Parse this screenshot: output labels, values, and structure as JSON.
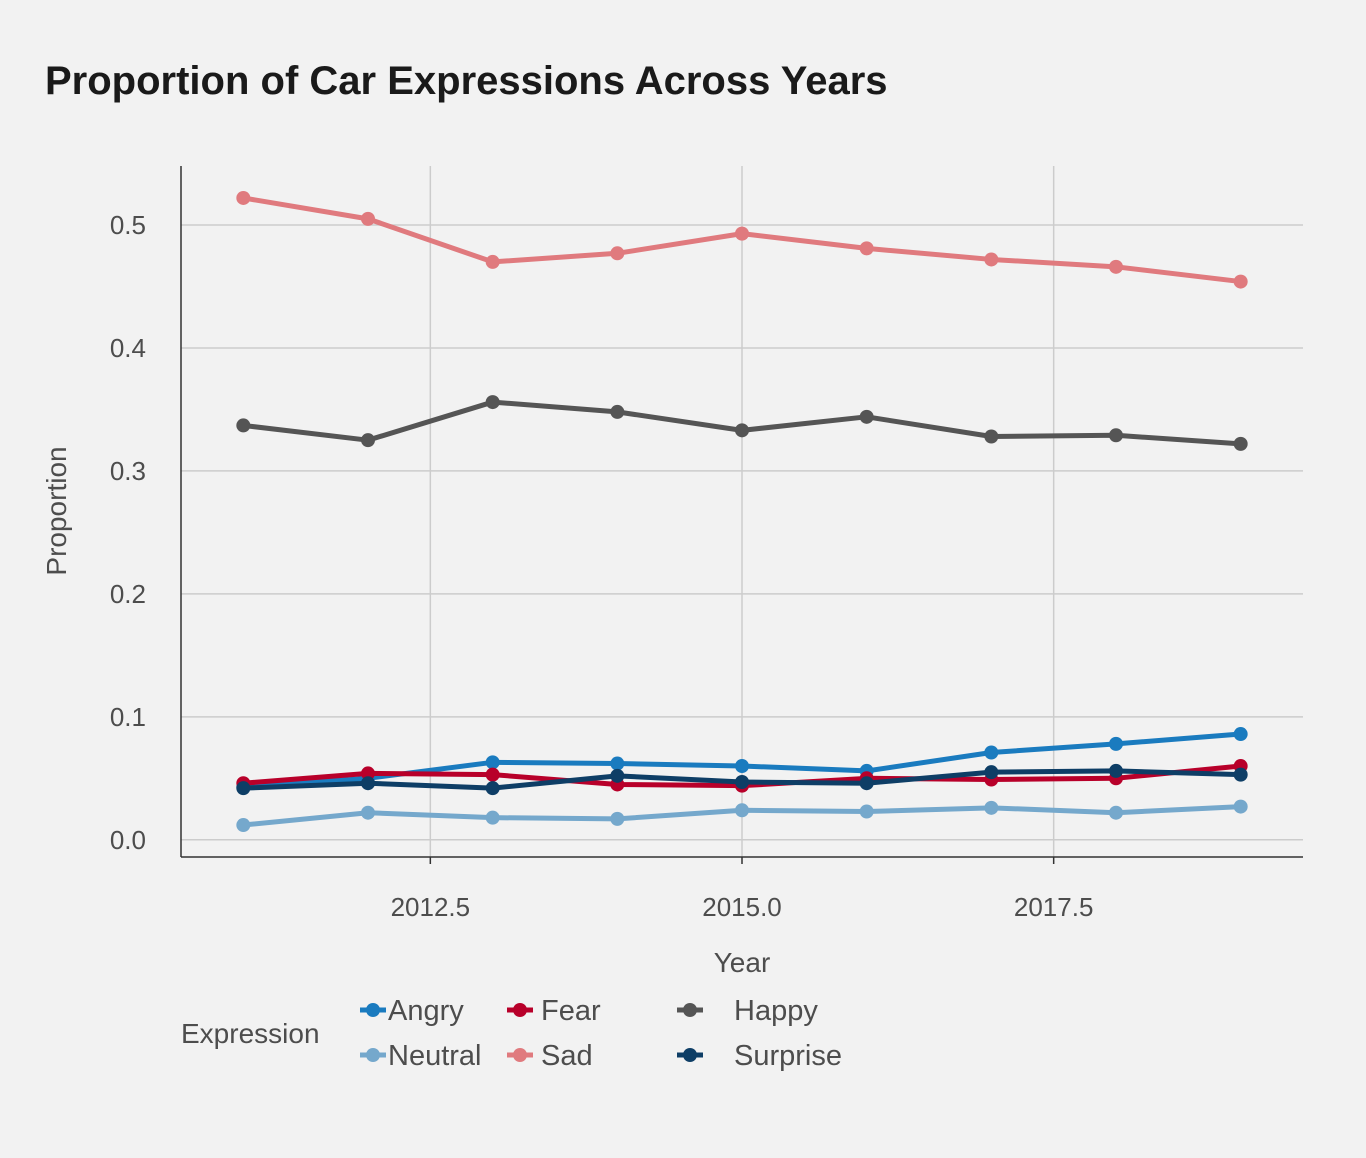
{
  "chart_data": {
    "type": "line",
    "title": "Proportion of Car Expressions Across Years",
    "xlabel": "Year",
    "ylabel": "Proportion",
    "x": [
      2011,
      2012,
      2013,
      2014,
      2015,
      2016,
      2017,
      2018,
      2019
    ],
    "xlim": [
      2010.5,
      2019.5
    ],
    "ylim": [
      -0.014,
      0.548
    ],
    "xticks": [
      2012.5,
      2015.0,
      2017.5
    ],
    "xtick_labels": [
      "2012.5",
      "2015.0",
      "2017.5"
    ],
    "yticks": [
      0.0,
      0.1,
      0.2,
      0.3,
      0.4,
      0.5
    ],
    "ytick_labels": [
      "0.0",
      "0.1",
      "0.2",
      "0.3",
      "0.4",
      "0.5"
    ],
    "grid": true,
    "legend": {
      "title": "Expression",
      "position": "bottom"
    },
    "series": [
      {
        "name": "Angry",
        "color": "#1a7bbf",
        "values": [
          0.043,
          0.05,
          0.063,
          0.062,
          0.06,
          0.056,
          0.071,
          0.078,
          0.086
        ]
      },
      {
        "name": "Fear",
        "color": "#b8002a",
        "values": [
          0.046,
          0.054,
          0.053,
          0.045,
          0.044,
          0.05,
          0.049,
          0.05,
          0.06
        ]
      },
      {
        "name": "Happy",
        "color": "#555555",
        "values": [
          0.337,
          0.325,
          0.356,
          0.348,
          0.333,
          0.344,
          0.328,
          0.329,
          0.322
        ]
      },
      {
        "name": "Neutral",
        "color": "#75a8cc",
        "values": [
          0.012,
          0.022,
          0.018,
          0.017,
          0.024,
          0.023,
          0.026,
          0.022,
          0.027
        ]
      },
      {
        "name": "Sad",
        "color": "#e07a7e",
        "values": [
          0.522,
          0.505,
          0.47,
          0.477,
          0.493,
          0.481,
          0.472,
          0.466,
          0.454
        ]
      },
      {
        "name": "Surprise",
        "color": "#0e3e66",
        "values": [
          0.042,
          0.046,
          0.042,
          0.052,
          0.047,
          0.046,
          0.055,
          0.056,
          0.053
        ]
      }
    ]
  }
}
